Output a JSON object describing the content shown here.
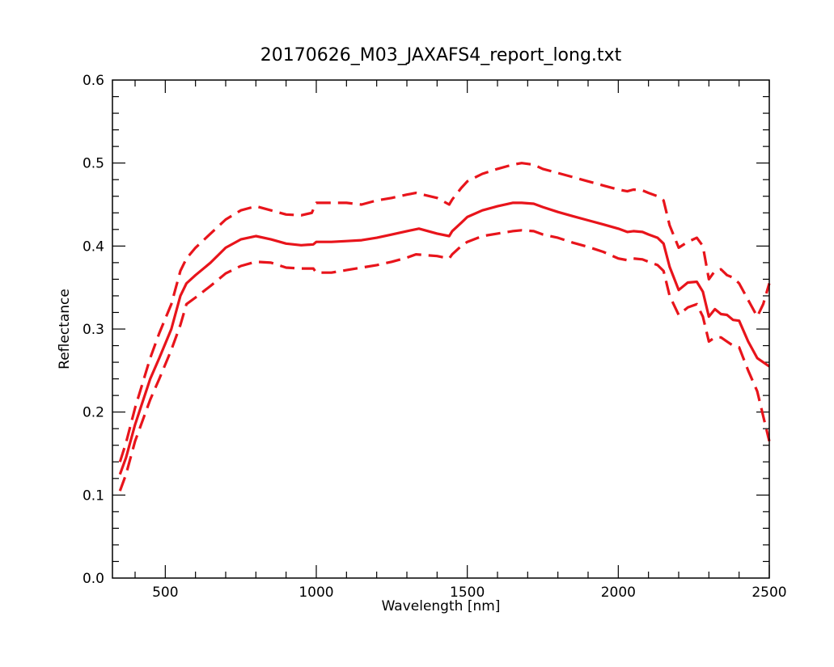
{
  "chart_data": {
    "type": "line",
    "title": "20170626_M03_JAXAFS4_report_long.txt",
    "xlabel": "Wavelength [nm]",
    "ylabel": "Reflectance",
    "xlim": [
      325,
      2500
    ],
    "ylim": [
      0.0,
      0.6
    ],
    "x_ticks": [
      500,
      1000,
      1500,
      2000,
      2500
    ],
    "y_ticks": [
      0.0,
      0.1,
      0.2,
      0.3,
      0.4,
      0.5,
      0.6
    ],
    "grid": false,
    "legend": "none",
    "color": "#e8141b",
    "series": [
      {
        "style": "solid",
        "x": [
          350,
          370,
          400,
          450,
          480,
          520,
          550,
          570,
          600,
          650,
          700,
          750,
          800,
          850,
          900,
          950,
          990,
          1000,
          1050,
          1100,
          1150,
          1200,
          1250,
          1300,
          1340,
          1400,
          1440,
          1450,
          1480,
          1500,
          1550,
          1600,
          1650,
          1680,
          1720,
          1750,
          1800,
          1850,
          1900,
          1950,
          2000,
          2030,
          2050,
          2080,
          2100,
          2130,
          2150,
          2170,
          2200,
          2230,
          2260,
          2280,
          2300,
          2320,
          2340,
          2360,
          2380,
          2400,
          2430,
          2460,
          2480,
          2500
        ],
        "y": [
          0.125,
          0.145,
          0.185,
          0.24,
          0.265,
          0.3,
          0.34,
          0.355,
          0.365,
          0.38,
          0.398,
          0.408,
          0.412,
          0.408,
          0.403,
          0.401,
          0.402,
          0.405,
          0.405,
          0.406,
          0.407,
          0.41,
          0.414,
          0.418,
          0.421,
          0.415,
          0.412,
          0.418,
          0.428,
          0.435,
          0.443,
          0.448,
          0.452,
          0.452,
          0.451,
          0.447,
          0.441,
          0.436,
          0.431,
          0.426,
          0.421,
          0.417,
          0.418,
          0.417,
          0.414,
          0.41,
          0.403,
          0.375,
          0.347,
          0.356,
          0.357,
          0.345,
          0.315,
          0.324,
          0.318,
          0.317,
          0.311,
          0.31,
          0.285,
          0.265,
          0.26,
          0.255
        ]
      },
      {
        "style": "dashed",
        "x": [
          350,
          370,
          400,
          450,
          480,
          520,
          550,
          570,
          600,
          650,
          700,
          750,
          800,
          850,
          900,
          950,
          985,
          1000,
          1050,
          1100,
          1150,
          1200,
          1250,
          1300,
          1330,
          1400,
          1440,
          1450,
          1480,
          1500,
          1550,
          1600,
          1650,
          1680,
          1720,
          1750,
          1800,
          1850,
          1900,
          1950,
          2000,
          2030,
          2050,
          2080,
          2100,
          2130,
          2150,
          2170,
          2200,
          2230,
          2260,
          2280,
          2300,
          2320,
          2340,
          2360,
          2380,
          2400,
          2430,
          2460,
          2480,
          2500
        ],
        "y": [
          0.14,
          0.163,
          0.205,
          0.265,
          0.295,
          0.33,
          0.37,
          0.385,
          0.398,
          0.415,
          0.432,
          0.443,
          0.448,
          0.443,
          0.438,
          0.437,
          0.44,
          0.452,
          0.452,
          0.452,
          0.45,
          0.455,
          0.458,
          0.462,
          0.464,
          0.458,
          0.45,
          0.456,
          0.47,
          0.478,
          0.487,
          0.493,
          0.498,
          0.5,
          0.498,
          0.493,
          0.488,
          0.483,
          0.478,
          0.473,
          0.468,
          0.466,
          0.468,
          0.467,
          0.464,
          0.46,
          0.455,
          0.425,
          0.398,
          0.405,
          0.41,
          0.4,
          0.36,
          0.37,
          0.372,
          0.365,
          0.362,
          0.355,
          0.335,
          0.315,
          0.33,
          0.355
        ]
      },
      {
        "style": "dashed",
        "x": [
          350,
          370,
          400,
          450,
          480,
          520,
          550,
          570,
          600,
          650,
          700,
          750,
          800,
          850,
          900,
          950,
          990,
          1000,
          1050,
          1100,
          1150,
          1200,
          1250,
          1300,
          1330,
          1400,
          1440,
          1450,
          1480,
          1500,
          1550,
          1600,
          1650,
          1680,
          1720,
          1750,
          1800,
          1850,
          1900,
          1950,
          2000,
          2030,
          2050,
          2080,
          2100,
          2130,
          2150,
          2170,
          2200,
          2230,
          2260,
          2280,
          2300,
          2320,
          2340,
          2360,
          2380,
          2400,
          2430,
          2460,
          2480,
          2500
        ],
        "y": [
          0.105,
          0.125,
          0.165,
          0.215,
          0.24,
          0.275,
          0.305,
          0.33,
          0.338,
          0.352,
          0.367,
          0.376,
          0.381,
          0.38,
          0.374,
          0.373,
          0.373,
          0.368,
          0.368,
          0.371,
          0.374,
          0.377,
          0.381,
          0.386,
          0.39,
          0.388,
          0.385,
          0.39,
          0.4,
          0.405,
          0.412,
          0.415,
          0.418,
          0.419,
          0.418,
          0.414,
          0.41,
          0.404,
          0.399,
          0.393,
          0.385,
          0.383,
          0.385,
          0.384,
          0.381,
          0.377,
          0.37,
          0.34,
          0.317,
          0.326,
          0.33,
          0.315,
          0.285,
          0.29,
          0.29,
          0.285,
          0.28,
          0.278,
          0.25,
          0.225,
          0.195,
          0.165
        ]
      }
    ]
  }
}
